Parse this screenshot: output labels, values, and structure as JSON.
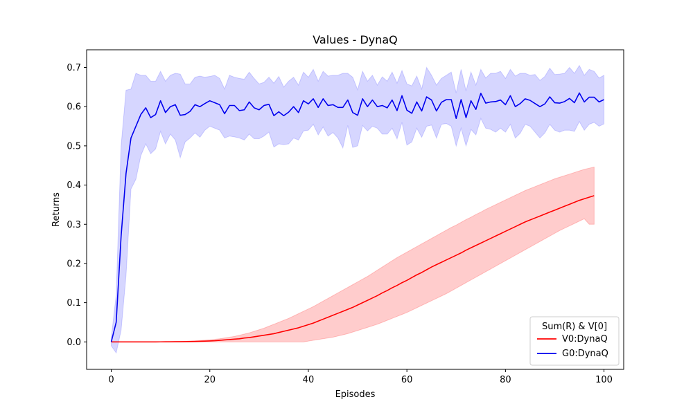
{
  "chart_data": {
    "type": "line",
    "title": "Values - DynaQ",
    "xlabel": "Episodes",
    "ylabel": "Returns",
    "xlim": [
      -5,
      104
    ],
    "ylim": [
      -0.07,
      0.745
    ],
    "xticks": [
      0,
      20,
      40,
      60,
      80,
      100
    ],
    "yticks": [
      0.0,
      0.1,
      0.2,
      0.3,
      0.4,
      0.5,
      0.6,
      0.7
    ],
    "xtick_labels": [
      "0",
      "20",
      "40",
      "60",
      "80",
      "100"
    ],
    "ytick_labels": [
      "0.0",
      "0.1",
      "0.2",
      "0.3",
      "0.4",
      "0.5",
      "0.6",
      "0.7"
    ],
    "grid": false,
    "legend": {
      "title": "Sum(R) & V[0]",
      "position": "bottom-right"
    },
    "series": [
      {
        "name": "V0:DynaQ",
        "color": "#ff0000",
        "band_color": "#ff0000",
        "x_start": 0,
        "mean": [
          0,
          0,
          0,
          0,
          0,
          0,
          0,
          0,
          0,
          0,
          0.0001,
          0.0002,
          0.0003,
          0.0004,
          0.0005,
          0.0007,
          0.0009,
          0.0012,
          0.0015,
          0.002,
          0.0025,
          0.003,
          0.004,
          0.005,
          0.006,
          0.007,
          0.008,
          0.01,
          0.011,
          0.013,
          0.015,
          0.017,
          0.019,
          0.021,
          0.024,
          0.027,
          0.03,
          0.033,
          0.036,
          0.04,
          0.044,
          0.048,
          0.053,
          0.058,
          0.063,
          0.068,
          0.073,
          0.078,
          0.083,
          0.088,
          0.094,
          0.1,
          0.106,
          0.112,
          0.118,
          0.125,
          0.131,
          0.138,
          0.144,
          0.151,
          0.157,
          0.164,
          0.171,
          0.177,
          0.184,
          0.191,
          0.197,
          0.203,
          0.209,
          0.215,
          0.221,
          0.227,
          0.234,
          0.24,
          0.246,
          0.252,
          0.258,
          0.264,
          0.27,
          0.276,
          0.282,
          0.288,
          0.294,
          0.3,
          0.306,
          0.311,
          0.316,
          0.321,
          0.326,
          0.331,
          0.336,
          0.341,
          0.346,
          0.351,
          0.356,
          0.361,
          0.365,
          0.369,
          0.373
        ],
        "upper": [
          0,
          0,
          0,
          0,
          0,
          0,
          0,
          0,
          0,
          0,
          0.0005,
          0.0008,
          0.001,
          0.0013,
          0.0016,
          0.002,
          0.0025,
          0.003,
          0.0038,
          0.0045,
          0.0055,
          0.0068,
          0.008,
          0.01,
          0.012,
          0.014,
          0.017,
          0.02,
          0.023,
          0.027,
          0.031,
          0.035,
          0.04,
          0.045,
          0.05,
          0.055,
          0.06,
          0.066,
          0.072,
          0.078,
          0.084,
          0.09,
          0.097,
          0.104,
          0.111,
          0.118,
          0.125,
          0.132,
          0.139,
          0.146,
          0.153,
          0.16,
          0.167,
          0.175,
          0.183,
          0.191,
          0.199,
          0.207,
          0.215,
          0.222,
          0.229,
          0.236,
          0.243,
          0.25,
          0.257,
          0.264,
          0.271,
          0.278,
          0.285,
          0.292,
          0.298,
          0.305,
          0.312,
          0.318,
          0.325,
          0.331,
          0.338,
          0.344,
          0.35,
          0.356,
          0.362,
          0.368,
          0.374,
          0.38,
          0.386,
          0.391,
          0.396,
          0.401,
          0.406,
          0.411,
          0.416,
          0.42,
          0.424,
          0.428,
          0.432,
          0.436,
          0.44,
          0.443,
          0.446
        ],
        "lower": [
          0,
          0,
          0,
          0,
          0,
          0,
          0,
          0,
          0,
          0,
          0,
          0,
          0,
          0,
          0,
          0,
          0,
          0,
          0,
          0,
          0,
          0,
          0,
          0,
          0,
          0,
          0,
          0,
          0,
          0,
          0,
          0,
          0,
          0,
          0,
          0,
          0,
          0,
          0,
          0,
          0.002,
          0.004,
          0.006,
          0.008,
          0.01,
          0.012,
          0.015,
          0.018,
          0.021,
          0.025,
          0.029,
          0.033,
          0.037,
          0.041,
          0.045,
          0.05,
          0.055,
          0.06,
          0.065,
          0.07,
          0.075,
          0.081,
          0.087,
          0.093,
          0.099,
          0.105,
          0.111,
          0.117,
          0.123,
          0.13,
          0.137,
          0.144,
          0.151,
          0.158,
          0.165,
          0.172,
          0.179,
          0.186,
          0.193,
          0.2,
          0.207,
          0.214,
          0.221,
          0.228,
          0.235,
          0.242,
          0.249,
          0.256,
          0.263,
          0.27,
          0.277,
          0.284,
          0.29,
          0.296,
          0.302,
          0.308,
          0.314,
          0.3,
          0.3
        ]
      },
      {
        "name": "G0:DynaQ",
        "color": "#0000ee",
        "band_color": "#3333ff",
        "x_start": 0,
        "mean": [
          0,
          0.05,
          0.27,
          0.43,
          0.52,
          0.55,
          0.58,
          0.597,
          0.572,
          0.58,
          0.615,
          0.585,
          0.6,
          0.605,
          0.578,
          0.58,
          0.588,
          0.605,
          0.6,
          0.608,
          0.615,
          0.61,
          0.605,
          0.582,
          0.603,
          0.603,
          0.59,
          0.592,
          0.612,
          0.597,
          0.592,
          0.603,
          0.606,
          0.577,
          0.587,
          0.577,
          0.586,
          0.6,
          0.585,
          0.615,
          0.607,
          0.62,
          0.598,
          0.62,
          0.603,
          0.605,
          0.598,
          0.598,
          0.617,
          0.585,
          0.578,
          0.62,
          0.6,
          0.617,
          0.6,
          0.603,
          0.597,
          0.617,
          0.59,
          0.628,
          0.591,
          0.583,
          0.612,
          0.589,
          0.625,
          0.617,
          0.589,
          0.611,
          0.618,
          0.618,
          0.57,
          0.618,
          0.572,
          0.615,
          0.593,
          0.634,
          0.609,
          0.612,
          0.613,
          0.617,
          0.605,
          0.628,
          0.6,
          0.608,
          0.62,
          0.616,
          0.608,
          0.6,
          0.607,
          0.625,
          0.61,
          0.609,
          0.613,
          0.621,
          0.61,
          0.635,
          0.612,
          0.624,
          0.624,
          0.612,
          0.618
        ],
        "upper": [
          0.01,
          0.12,
          0.5,
          0.642,
          0.645,
          0.685,
          0.68,
          0.68,
          0.665,
          0.665,
          0.69,
          0.665,
          0.68,
          0.685,
          0.683,
          0.658,
          0.658,
          0.675,
          0.678,
          0.675,
          0.677,
          0.68,
          0.672,
          0.645,
          0.68,
          0.675,
          0.672,
          0.67,
          0.688,
          0.672,
          0.658,
          0.662,
          0.675,
          0.66,
          0.677,
          0.65,
          0.665,
          0.675,
          0.655,
          0.688,
          0.675,
          0.695,
          0.665,
          0.69,
          0.678,
          0.68,
          0.68,
          0.685,
          0.685,
          0.675,
          0.643,
          0.69,
          0.665,
          0.68,
          0.655,
          0.676,
          0.665,
          0.688,
          0.66,
          0.692,
          0.658,
          0.653,
          0.678,
          0.645,
          0.7,
          0.68,
          0.655,
          0.672,
          0.68,
          0.688,
          0.635,
          0.695,
          0.64,
          0.688,
          0.655,
          0.695,
          0.673,
          0.685,
          0.685,
          0.69,
          0.672,
          0.695,
          0.678,
          0.685,
          0.685,
          0.68,
          0.682,
          0.667,
          0.677,
          0.698,
          0.682,
          0.683,
          0.685,
          0.7,
          0.685,
          0.705,
          0.68,
          0.695,
          0.69,
          0.673,
          0.68
        ],
        "lower": [
          -0.01,
          -0.028,
          0.03,
          0.17,
          0.39,
          0.415,
          0.475,
          0.505,
          0.48,
          0.492,
          0.537,
          0.505,
          0.53,
          0.515,
          0.47,
          0.51,
          0.52,
          0.533,
          0.522,
          0.54,
          0.55,
          0.545,
          0.54,
          0.52,
          0.525,
          0.523,
          0.52,
          0.515,
          0.53,
          0.518,
          0.518,
          0.525,
          0.535,
          0.497,
          0.505,
          0.503,
          0.505,
          0.52,
          0.515,
          0.538,
          0.54,
          0.555,
          0.528,
          0.548,
          0.525,
          0.534,
          0.52,
          0.495,
          0.552,
          0.496,
          0.5,
          0.552,
          0.538,
          0.55,
          0.545,
          0.53,
          0.53,
          0.545,
          0.518,
          0.56,
          0.502,
          0.51,
          0.545,
          0.522,
          0.55,
          0.553,
          0.52,
          0.555,
          0.557,
          0.55,
          0.5,
          0.545,
          0.5,
          0.542,
          0.528,
          0.57,
          0.545,
          0.542,
          0.535,
          0.545,
          0.535,
          0.555,
          0.52,
          0.532,
          0.555,
          0.55,
          0.535,
          0.52,
          0.533,
          0.555,
          0.54,
          0.535,
          0.54,
          0.54,
          0.537,
          0.562,
          0.54,
          0.555,
          0.56,
          0.55,
          0.556
        ]
      }
    ]
  }
}
